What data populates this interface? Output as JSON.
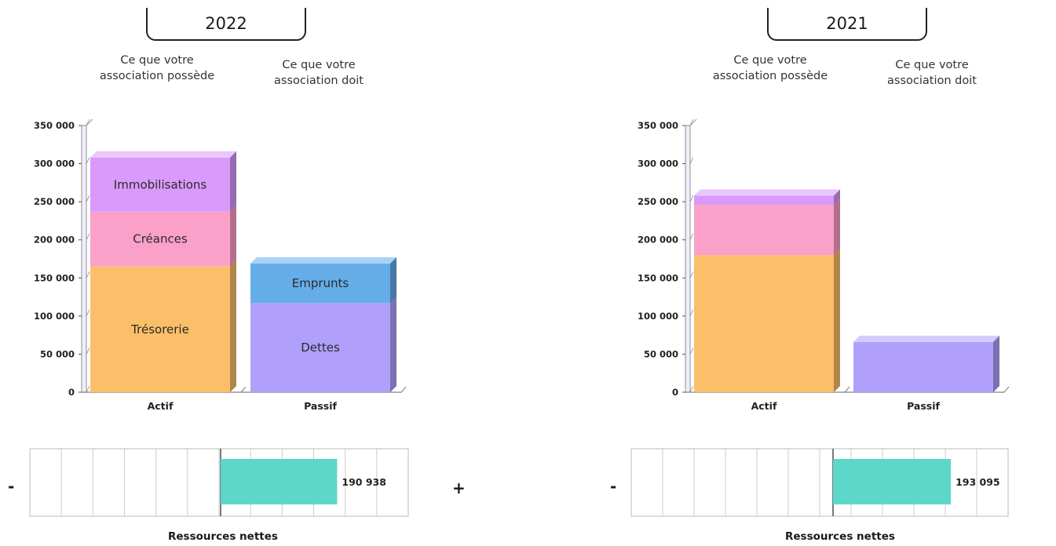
{
  "signs": {
    "minus": "-",
    "plus": "+"
  },
  "chart_data": [
    {
      "type": "bar",
      "title": "2022",
      "caption_left": [
        "Ce que votre",
        "association possède"
      ],
      "caption_right": [
        "Ce que votre",
        "association doit"
      ],
      "categories": [
        "Actif",
        "Passif"
      ],
      "ylim": [
        0,
        350000
      ],
      "yticks": [
        "0",
        "50 000",
        "100 000",
        "150 000",
        "200 000",
        "250 000",
        "300 000",
        "350 000"
      ],
      "stacks": [
        {
          "category": "Actif",
          "segments": [
            {
              "label": "Trésorerie",
              "value": 165000,
              "color": "#fbbf69"
            },
            {
              "label": "Créances",
              "value": 72000,
              "color": "#fba0c8"
            },
            {
              "label": "Immobilisations",
              "value": 71000,
              "color": "#d99afc"
            }
          ]
        },
        {
          "category": "Passif",
          "segments": [
            {
              "label": "Dettes",
              "value": 117000,
              "color": "#b0a0fc"
            },
            {
              "label": "Emprunts",
              "value": 52000,
              "color": "#65ade8"
            }
          ]
        }
      ],
      "net": {
        "label": "Ressources nettes",
        "value": 190938,
        "value_text": "190 938",
        "color": "#5dd7c9"
      }
    },
    {
      "type": "bar",
      "title": "2021",
      "caption_left": [
        "Ce que votre",
        "association possède"
      ],
      "caption_right": [
        "Ce que votre",
        "association doit"
      ],
      "categories": [
        "Actif",
        "Passif"
      ],
      "ylim": [
        0,
        350000
      ],
      "yticks": [
        "0",
        "50 000",
        "100 000",
        "150 000",
        "200 000",
        "250 000",
        "300 000",
        "350 000"
      ],
      "stacks": [
        {
          "category": "Actif",
          "segments": [
            {
              "label": "",
              "value": 180000,
              "color": "#fbbf69"
            },
            {
              "label": "",
              "value": 66000,
              "color": "#fba0c8"
            },
            {
              "label": "",
              "value": 12000,
              "color": "#d99afc"
            }
          ]
        },
        {
          "category": "Passif",
          "segments": [
            {
              "label": "",
              "value": 66000,
              "color": "#b0a0fc"
            }
          ]
        }
      ],
      "net": {
        "label": "Ressources nettes",
        "value": 193095,
        "value_text": "193 095",
        "color": "#5dd7c9"
      }
    }
  ]
}
